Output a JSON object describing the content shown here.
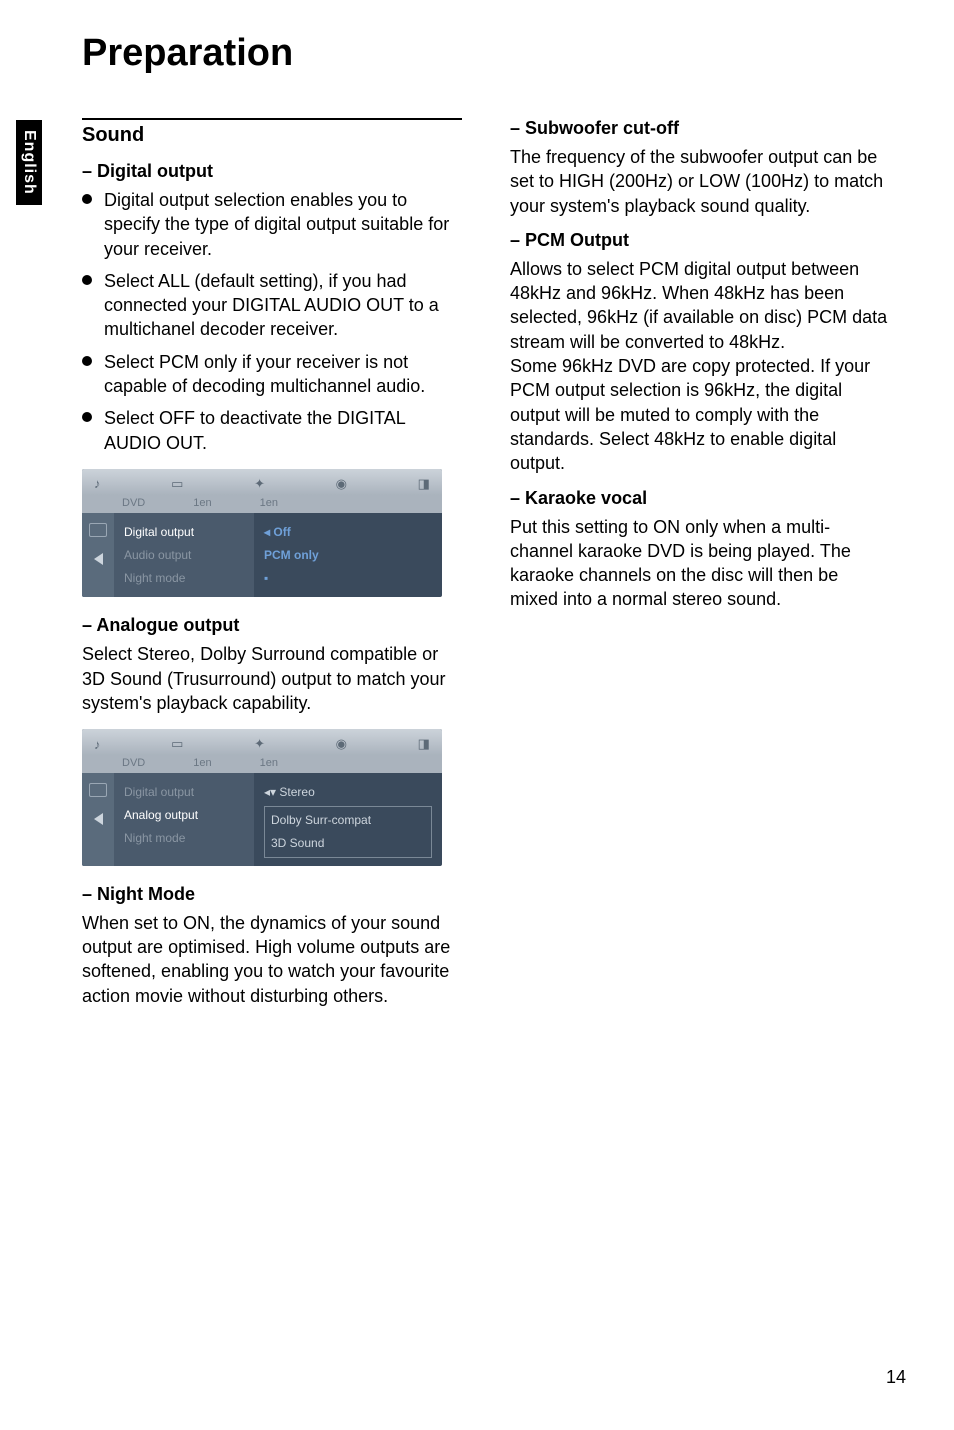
{
  "lang_tab": "English",
  "page_title": "Preparation",
  "page_number": "14",
  "left": {
    "section_title": "Sound",
    "digital_output": {
      "heading": "–   Digital output",
      "bullets": [
        "Digital output selection enables you to specify the type of digital output suitable for your receiver.",
        "Select ALL (default setting), if you had connected your DIGITAL AUDIO OUT to a multichanel decoder receiver.",
        "Select PCM only if your receiver is not capable of decoding multichannel audio.",
        "Select OFF to deactivate the DIGITAL AUDIO OUT."
      ]
    },
    "analogue_output": {
      "heading": "–   Analogue output",
      "text": "Select Stereo, Dolby Surround compatible or 3D Sound (Trusurround) output to match your system's playback capability."
    },
    "night_mode": {
      "heading": "–   Night Mode",
      "text": "When set to ON, the dynamics of your sound output are optimised. High volume outputs are softened, enabling you to watch your favourite action movie without disturbing others."
    }
  },
  "right": {
    "subwoofer": {
      "heading": "–   Subwoofer cut-off",
      "text": "The frequency of the subwoofer output can be set to HIGH (200Hz) or LOW (100Hz) to match your system's playback sound quality."
    },
    "pcm": {
      "heading": "–   PCM Output",
      "text": "Allows to select PCM digital output between 48kHz and 96kHz. When 48kHz has been selected, 96kHz (if available on disc) PCM data stream will be converted to 48kHz.\nSome 96kHz DVD are copy protected. If your PCM output selection is 96kHz, the digital output will be muted to comply with the standards. Select 48kHz to enable digital output."
    },
    "karaoke": {
      "heading": "–   Karaoke vocal",
      "text": "Put this setting to ON only when a multi-channel karaoke DVD is being played. The karaoke channels on the disc will then be mixed into a normal stereo sound."
    }
  },
  "screenshot_a": {
    "tabrow": [
      "1en",
      "1en"
    ],
    "menu": [
      "Digital output",
      "Audio output",
      "Night mode"
    ],
    "sel_idx": 0,
    "opts_top": "Off",
    "opts_sel": "PCM only"
  },
  "screenshot_b": {
    "tabrow": [
      "1en",
      "1en"
    ],
    "menu": [
      "Digital output",
      "Analog output",
      "Night mode"
    ],
    "sel_idx": 1,
    "opts": [
      "Stereo",
      "Dolby Surr-compat",
      "3D Sound"
    ],
    "opts_sel_idx": 0,
    "colors": {
      "bg": "#3a4a5c",
      "panel": "#4a5a6c",
      "side": "#5a6b7c",
      "text_dim": "#8a96a3",
      "text_sel": "#ffffff"
    }
  }
}
